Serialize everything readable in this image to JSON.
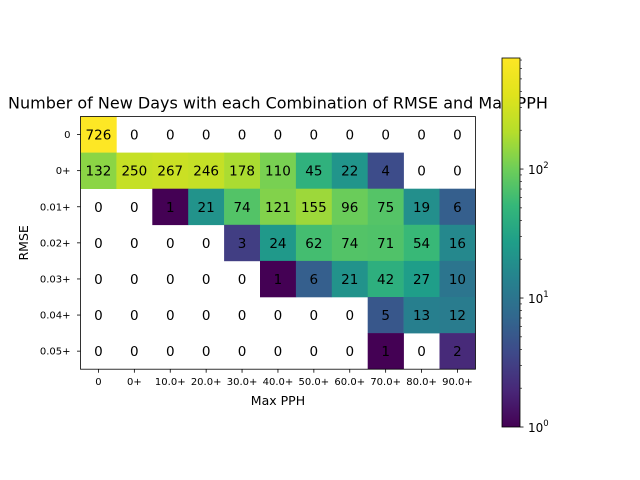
{
  "chart_data": {
    "type": "heatmap",
    "title": "Number of New Days with each Combination of RMSE and Max PPH",
    "xlabel": "Max PPH",
    "ylabel": "RMSE",
    "x_categories": [
      "0",
      "0+",
      "10.0+",
      "20.0+",
      "30.0+",
      "40.0+",
      "50.0+",
      "60.0+",
      "70.0+",
      "80.0+",
      "90.0+"
    ],
    "y_categories": [
      "0",
      "0+",
      "0.01+",
      "0.02+",
      "0.03+",
      "0.04+",
      "0.05+"
    ],
    "values": [
      [
        726,
        0,
        0,
        0,
        0,
        0,
        0,
        0,
        0,
        0,
        0
      ],
      [
        132,
        250,
        267,
        246,
        178,
        110,
        45,
        22,
        4,
        0,
        0
      ],
      [
        0,
        0,
        1,
        21,
        74,
        121,
        155,
        96,
        75,
        19,
        6
      ],
      [
        0,
        0,
        0,
        0,
        3,
        24,
        62,
        74,
        71,
        54,
        16
      ],
      [
        0,
        0,
        0,
        0,
        0,
        1,
        6,
        21,
        42,
        27,
        10
      ],
      [
        0,
        0,
        0,
        0,
        0,
        0,
        0,
        0,
        5,
        13,
        12
      ],
      [
        0,
        0,
        0,
        0,
        0,
        0,
        0,
        0,
        1,
        0,
        2
      ]
    ],
    "colorscale": "viridis",
    "color_scale_type": "log",
    "colorbar_range": [
      1,
      726
    ],
    "colorbar_ticks": [
      {
        "base": "10",
        "exp": "0"
      },
      {
        "base": "10",
        "exp": "1"
      },
      {
        "base": "10",
        "exp": "2"
      }
    ],
    "zero_cells_color": "#ffffff"
  }
}
